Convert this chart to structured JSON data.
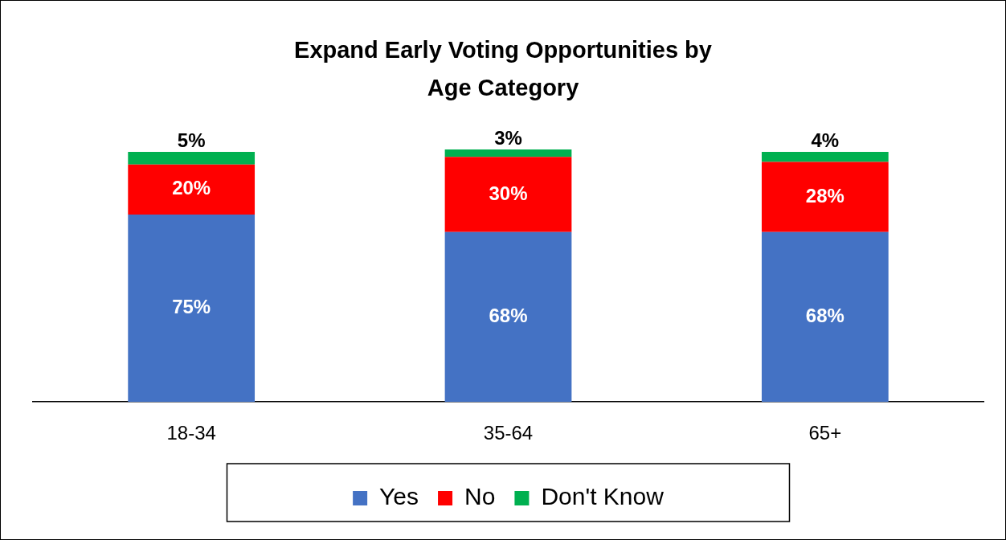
{
  "chart_data": {
    "type": "bar",
    "title": "Expand Early Voting Opportunities by Age Category",
    "categories": [
      "18-34",
      "35-64",
      "65+"
    ],
    "stacked": true,
    "legend": "bottom",
    "grid": false,
    "series": [
      {
        "name": "Yes",
        "color": "#4472c4",
        "values": [
          75,
          68,
          68
        ],
        "value_labels": [
          "75%",
          "68%",
          "68%"
        ]
      },
      {
        "name": "No",
        "color": "#ff0000",
        "values": [
          20,
          30,
          28
        ],
        "value_labels": [
          "20%",
          "30%",
          "28%"
        ]
      },
      {
        "name": "Don't Know",
        "color": "#00b050",
        "values": [
          5,
          3,
          4
        ],
        "value_labels": [
          "5%",
          "3%",
          "4%"
        ]
      }
    ]
  }
}
